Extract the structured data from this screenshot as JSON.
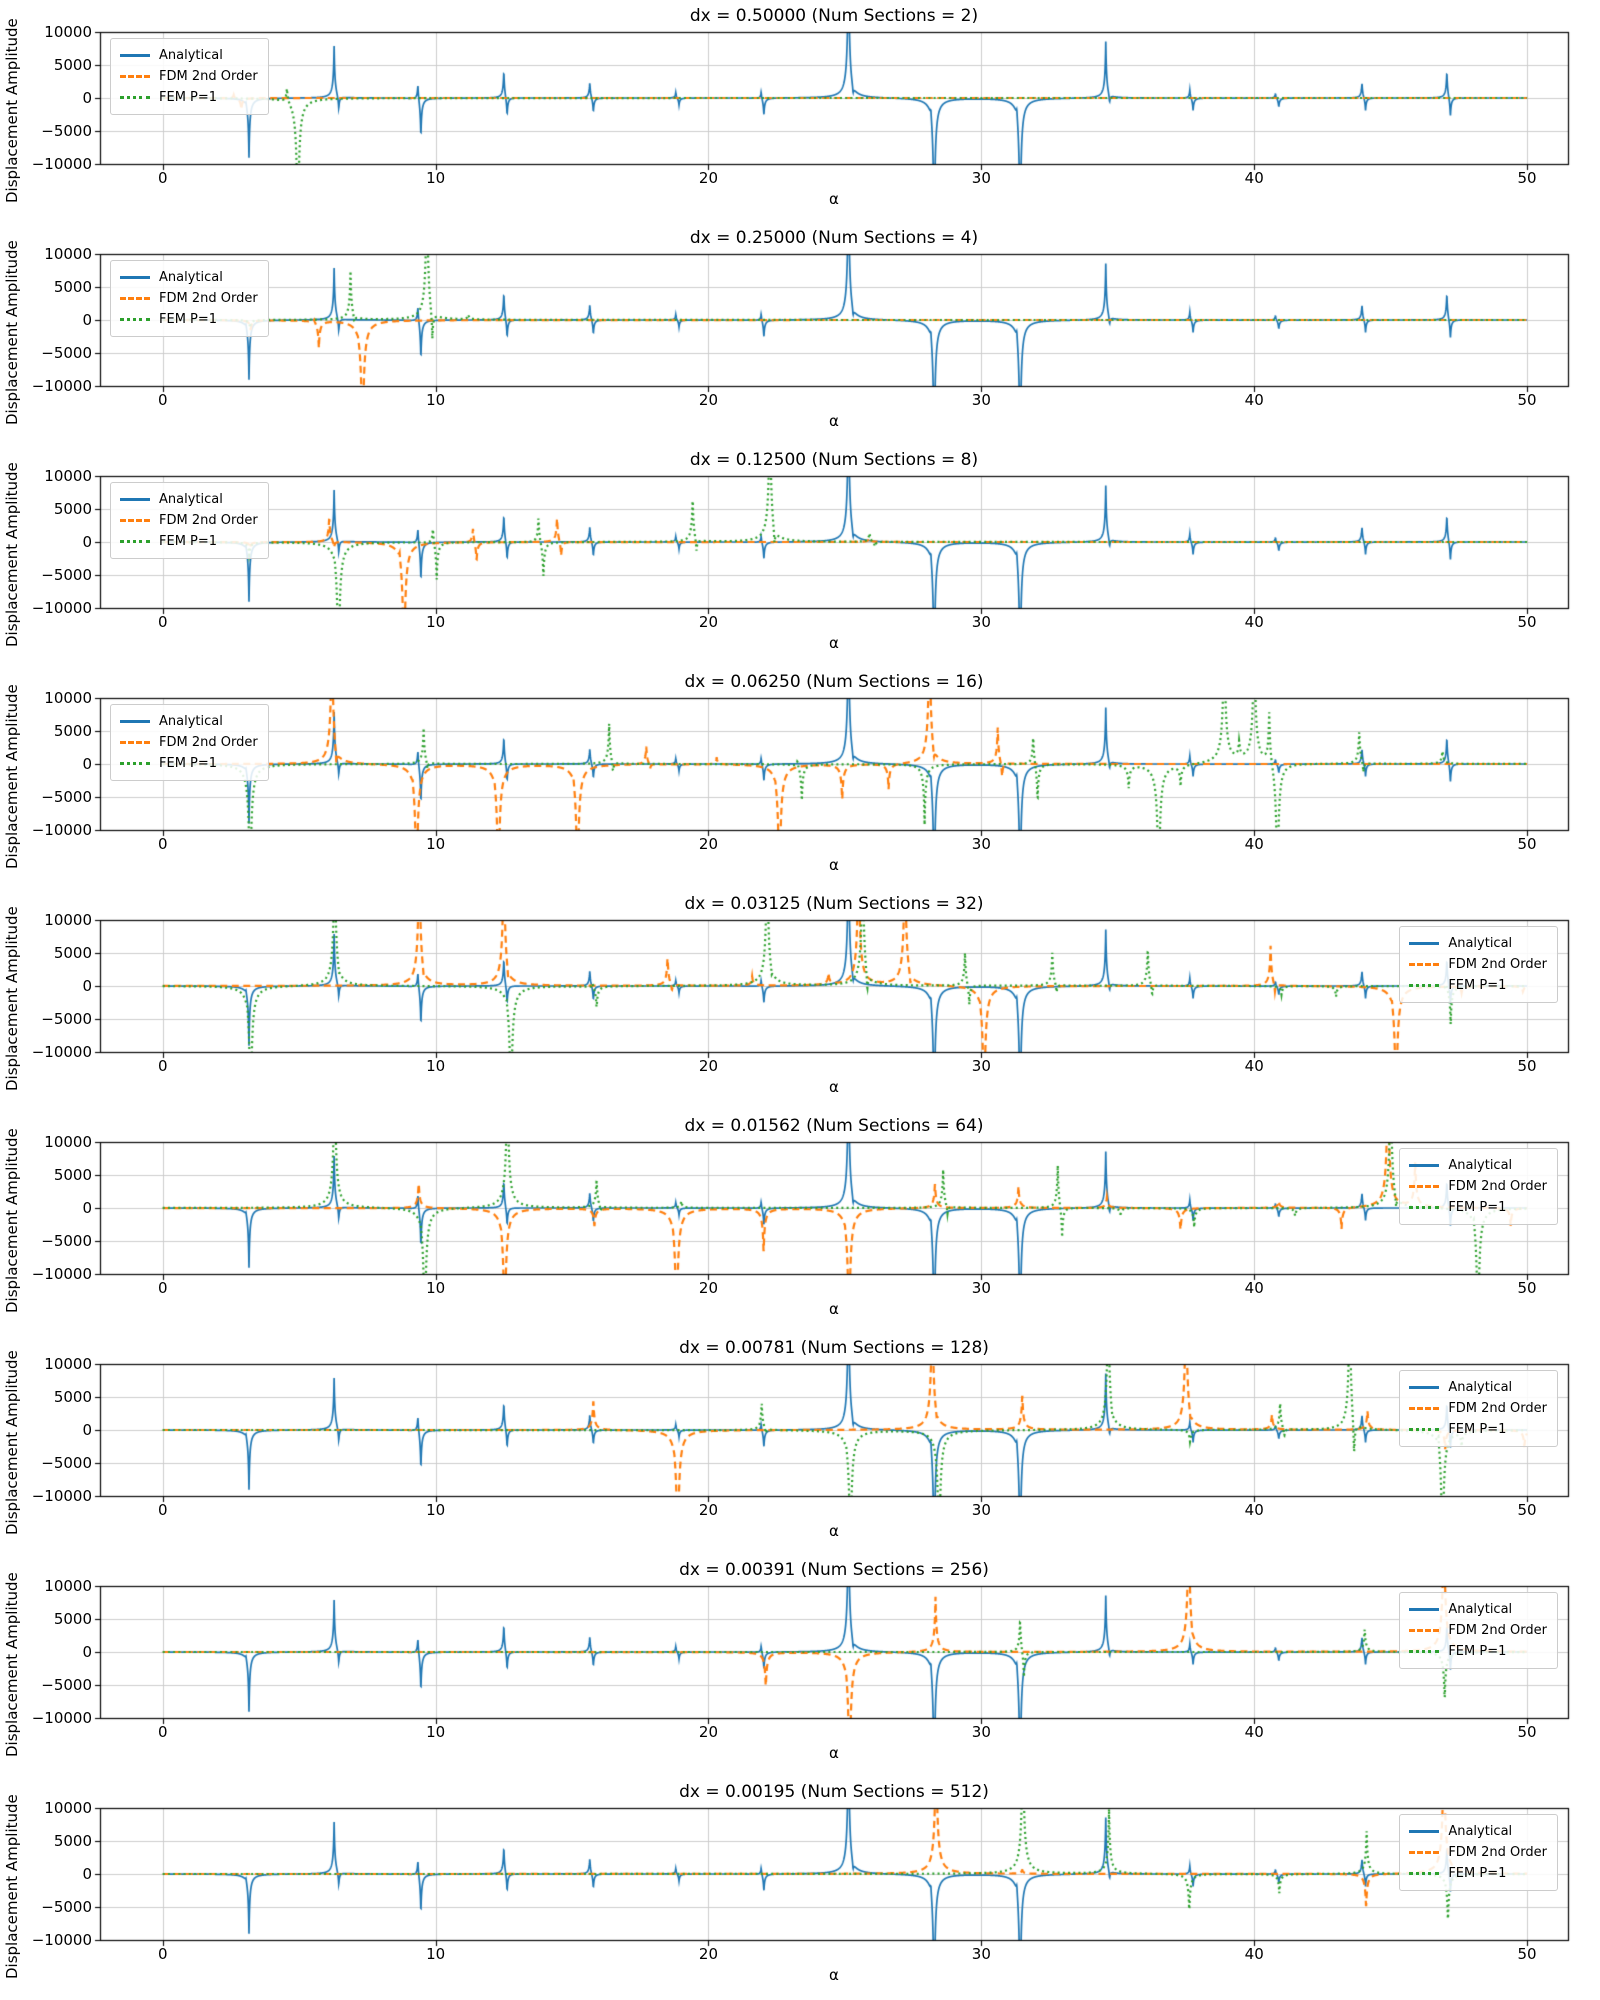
{
  "figure": {
    "ylabel": "Displacement Amplitude",
    "xlabel": "α",
    "x_ticks": [
      0,
      10,
      20,
      30,
      40,
      50
    ],
    "x_tick_labels": [
      "0",
      "10",
      "20",
      "30",
      "40",
      "50"
    ],
    "y_ticks": [
      10000,
      5000,
      0,
      -5000,
      -10000
    ],
    "y_tick_labels": [
      "10000",
      "5000",
      "0",
      "−5000",
      "−10000"
    ],
    "xlim": [
      -2.3,
      51.5
    ],
    "ylim": [
      -10000,
      10000
    ],
    "colors": {
      "analytical": "#1f77b4",
      "fdm": "#ff7f0e",
      "fem": "#2ca02c",
      "grid": "#cccccc",
      "spine": "#000000",
      "legend_border": "#cccccc",
      "text": "#000000"
    },
    "series_styles": [
      {
        "key": "analytical",
        "color": "#1f77b4",
        "dash": [],
        "lw": 1.7,
        "w": 0.05,
        "css": "solid"
      },
      {
        "key": "fdm",
        "color": "#ff7f0e",
        "dash": [
          7,
          4.5
        ],
        "lw": 2.2,
        "w": 0.06,
        "css": "dashed"
      },
      {
        "key": "fem",
        "color": "#2ca02c",
        "dash": [
          2,
          3.2
        ],
        "lw": 2.2,
        "w": 0.06,
        "css": "dotted"
      }
    ],
    "legend": {
      "entries": [
        {
          "label": "Analytical",
          "style": "solid",
          "color": "#1f77b4"
        },
        {
          "label": "FDM 2nd Order",
          "style": "dashed",
          "color": "#ff7f0e"
        },
        {
          "label": "FEM P=1",
          "style": "dotted",
          "color": "#2ca02c"
        }
      ]
    }
  },
  "chart_data": {
    "type": "line",
    "spike_format": "[alpha, peak_displacement]; |peak| > 10000 means spike is clipped off-scale",
    "shared": {
      "xlabel": "α",
      "ylabel": "Displacement Amplitude",
      "x_range": [
        0,
        50
      ],
      "ylim": [
        -10000,
        10000
      ],
      "analytical_resonances": [
        [
          3.05,
          800
        ],
        [
          3.16,
          -9200
        ],
        [
          6.28,
          8100
        ],
        [
          6.45,
          -2400
        ],
        [
          9.35,
          3000
        ],
        [
          9.46,
          -6400
        ],
        [
          12.5,
          4600
        ],
        [
          12.62,
          -3300
        ],
        [
          15.65,
          2700
        ],
        [
          15.78,
          -2500
        ],
        [
          18.8,
          1000
        ],
        [
          18.92,
          -1200
        ],
        [
          21.93,
          1400
        ],
        [
          22.03,
          -2900
        ],
        [
          25.13,
          25000
        ],
        [
          25.3,
          -1600
        ],
        [
          28.15,
          1800
        ],
        [
          28.27,
          -25000
        ],
        [
          31.3,
          1900
        ],
        [
          31.42,
          -25000
        ],
        [
          34.56,
          8800
        ],
        [
          34.7,
          -1700
        ],
        [
          37.64,
          1500
        ],
        [
          37.76,
          -2100
        ],
        [
          40.78,
          900
        ],
        [
          40.9,
          -1500
        ],
        [
          43.95,
          2600
        ],
        [
          44.08,
          -2200
        ],
        [
          47.06,
          4500
        ],
        [
          47.19,
          -3400
        ]
      ]
    },
    "subplots": [
      {
        "title": "dx = 0.50000 (Num Sections = 2)",
        "dx": "0.50000",
        "num_sections": 2,
        "legend_loc": "upper-left",
        "fdm_spikes": [
          [
            2.6,
            600
          ],
          [
            2.88,
            -1800
          ]
        ],
        "fem_spikes": [
          [
            4.55,
            2500
          ],
          [
            4.95,
            -25000
          ]
        ]
      },
      {
        "title": "dx = 0.25000 (Num Sections = 4)",
        "dx": "0.25000",
        "num_sections": 4,
        "legend_loc": "upper-left",
        "fdm_spikes": [
          [
            3.22,
            -1500
          ],
          [
            5.55,
            700
          ],
          [
            5.72,
            -4200
          ],
          [
            7.15,
            500
          ],
          [
            7.32,
            -25000
          ]
        ],
        "fem_spikes": [
          [
            3.2,
            -1200
          ],
          [
            6.88,
            7600
          ],
          [
            7.02,
            -1500
          ],
          [
            9.68,
            25000
          ],
          [
            9.88,
            -5200
          ],
          [
            11.2,
            700
          ]
        ]
      },
      {
        "title": "dx = 0.12500 (Num Sections = 8)",
        "dx": "0.12500",
        "num_sections": 8,
        "legend_loc": "upper-left",
        "fdm_spikes": [
          [
            3.2,
            -900
          ],
          [
            6.1,
            3900
          ],
          [
            6.28,
            -1200
          ],
          [
            8.68,
            1500
          ],
          [
            8.84,
            -25000
          ],
          [
            11.37,
            2700
          ],
          [
            11.5,
            -3300
          ],
          [
            14.45,
            4100
          ],
          [
            14.6,
            -2600
          ],
          [
            25.9,
            700
          ]
        ],
        "fem_spikes": [
          [
            3.17,
            -2000
          ],
          [
            6.3,
            1000
          ],
          [
            6.44,
            -25000
          ],
          [
            9.9,
            3100
          ],
          [
            10.04,
            -6100
          ],
          [
            13.77,
            4400
          ],
          [
            13.95,
            -5900
          ],
          [
            19.42,
            7200
          ],
          [
            19.56,
            -2400
          ],
          [
            22.25,
            25000
          ],
          [
            22.42,
            -3200
          ],
          [
            25.9,
            1500
          ],
          [
            26.1,
            -900
          ]
        ]
      },
      {
        "title": "dx = 0.06250 (Num Sections = 16)",
        "dx": "0.06250",
        "num_sections": 16,
        "legend_loc": "upper-left",
        "fdm_spikes": [
          [
            6.2,
            25000
          ],
          [
            6.36,
            -2900
          ],
          [
            9.16,
            1200
          ],
          [
            9.3,
            -25000
          ],
          [
            12.16,
            1000
          ],
          [
            12.3,
            -25000
          ],
          [
            15.05,
            1500
          ],
          [
            15.2,
            -25000
          ],
          [
            17.72,
            2900
          ],
          [
            17.86,
            -1100
          ],
          [
            20.3,
            1100
          ],
          [
            22.45,
            800
          ],
          [
            22.6,
            -25000
          ],
          [
            24.9,
            -5800
          ],
          [
            26.6,
            -3900
          ],
          [
            28.1,
            25000
          ],
          [
            28.26,
            -2100
          ],
          [
            30.6,
            5800
          ],
          [
            30.76,
            -2600
          ]
        ],
        "fem_spikes": [
          [
            3.2,
            -25000
          ],
          [
            9.56,
            5700
          ],
          [
            9.7,
            -1600
          ],
          [
            16.36,
            6400
          ],
          [
            16.5,
            -2100
          ],
          [
            23.26,
            1200
          ],
          [
            23.42,
            -5800
          ],
          [
            27.92,
            -9200
          ],
          [
            31.9,
            5200
          ],
          [
            32.06,
            -6300
          ],
          [
            35.4,
            -3500
          ],
          [
            36.5,
            -25000
          ],
          [
            37.3,
            -3100
          ],
          [
            38.9,
            25000
          ],
          [
            39.45,
            2600
          ],
          [
            40.0,
            25000
          ],
          [
            40.55,
            9000
          ],
          [
            40.85,
            -25000
          ],
          [
            43.85,
            5300
          ],
          [
            44.0,
            -1900
          ],
          [
            46.9,
            2100
          ]
        ]
      },
      {
        "title": "dx = 0.03125 (Num Sections = 32)",
        "dx": "0.03125",
        "num_sections": 32,
        "legend_loc": "upper-right",
        "fdm_spikes": [
          [
            9.4,
            25000
          ],
          [
            9.56,
            -1600
          ],
          [
            12.5,
            25000
          ],
          [
            12.66,
            -2100
          ],
          [
            18.5,
            4700
          ],
          [
            18.66,
            -1300
          ],
          [
            21.6,
            1400
          ],
          [
            24.4,
            1700
          ],
          [
            25.5,
            25000
          ],
          [
            27.2,
            25000
          ],
          [
            27.4,
            -2000
          ],
          [
            29.95,
            900
          ],
          [
            30.1,
            -25000
          ],
          [
            40.6,
            6300
          ],
          [
            40.76,
            -1600
          ],
          [
            45.05,
            1100
          ],
          [
            45.2,
            -25000
          ],
          [
            47.6,
            -1000
          ],
          [
            49.85,
            -900
          ]
        ],
        "fem_spikes": [
          [
            3.1,
            1100
          ],
          [
            3.22,
            -25000
          ],
          [
            6.3,
            25000
          ],
          [
            6.46,
            -1100
          ],
          [
            12.6,
            1000
          ],
          [
            12.76,
            -25000
          ],
          [
            15.76,
            900
          ],
          [
            15.9,
            -3600
          ],
          [
            22.15,
            25000
          ],
          [
            22.32,
            -1200
          ],
          [
            25.65,
            25000
          ],
          [
            25.82,
            -3500
          ],
          [
            29.4,
            5400
          ],
          [
            29.56,
            -3500
          ],
          [
            32.6,
            5200
          ],
          [
            32.76,
            -1600
          ],
          [
            36.1,
            5900
          ],
          [
            36.26,
            -2100
          ],
          [
            41.0,
            -1300
          ],
          [
            43.0,
            -1600
          ],
          [
            47.05,
            1000
          ],
          [
            47.2,
            -5900
          ]
        ]
      },
      {
        "title": "dx = 0.01562 (Num Sections = 64)",
        "dx": "0.01562",
        "num_sections": 64,
        "legend_loc": "upper-right",
        "fdm_spikes": [
          [
            9.38,
            4100
          ],
          [
            12.4,
            700
          ],
          [
            12.53,
            -25000
          ],
          [
            15.82,
            -2800
          ],
          [
            18.7,
            700
          ],
          [
            18.83,
            -25000
          ],
          [
            22.02,
            -7000
          ],
          [
            25.0,
            800
          ],
          [
            25.15,
            -25000
          ],
          [
            28.3,
            3900
          ],
          [
            31.36,
            3300
          ],
          [
            34.6,
            1600
          ],
          [
            37.3,
            -3600
          ],
          [
            40.9,
            1100
          ],
          [
            43.2,
            -3300
          ],
          [
            44.9,
            25000
          ],
          [
            45.9,
            7200
          ],
          [
            49.4,
            -2700
          ]
        ],
        "fem_spikes": [
          [
            6.3,
            25000
          ],
          [
            9.46,
            900
          ],
          [
            9.6,
            -25000
          ],
          [
            12.63,
            25000
          ],
          [
            15.9,
            4500
          ],
          [
            16.05,
            -1100
          ],
          [
            19.0,
            1000
          ],
          [
            28.6,
            6000
          ],
          [
            28.76,
            -1600
          ],
          [
            32.8,
            7100
          ],
          [
            32.96,
            -5300
          ],
          [
            35.1,
            -1000
          ],
          [
            37.8,
            -2900
          ],
          [
            41.5,
            -1300
          ],
          [
            45.0,
            25000
          ],
          [
            45.2,
            -2100
          ],
          [
            48.05,
            1600
          ],
          [
            48.2,
            -25000
          ]
        ]
      },
      {
        "title": "dx = 0.00781 (Num Sections = 128)",
        "dx": "0.00781",
        "num_sections": 128,
        "legend_loc": "upper-right",
        "fdm_spikes": [
          [
            15.78,
            4700
          ],
          [
            18.75,
            600
          ],
          [
            18.87,
            -25000
          ],
          [
            28.2,
            25000
          ],
          [
            28.36,
            -1100
          ],
          [
            31.5,
            5500
          ],
          [
            37.5,
            25000
          ],
          [
            37.66,
            -1300
          ],
          [
            40.65,
            2400
          ],
          [
            44.15,
            3000
          ],
          [
            47.0,
            -2900
          ],
          [
            49.9,
            -2600
          ]
        ],
        "fem_spikes": [
          [
            21.95,
            4400
          ],
          [
            22.1,
            -1100
          ],
          [
            25.05,
            900
          ],
          [
            25.2,
            -25000
          ],
          [
            28.45,
            -25000
          ],
          [
            34.65,
            25000
          ],
          [
            34.8,
            -1300
          ],
          [
            37.65,
            -1900
          ],
          [
            40.95,
            4400
          ],
          [
            41.1,
            -1600
          ],
          [
            43.5,
            25000
          ],
          [
            43.66,
            -6900
          ],
          [
            46.75,
            2600
          ],
          [
            46.9,
            -25000
          ],
          [
            47.6,
            -2100
          ]
        ]
      },
      {
        "title": "dx = 0.00391 (Num Sections = 256)",
        "dx": "0.00391",
        "num_sections": 256,
        "legend_loc": "upper-right",
        "fdm_spikes": [
          [
            22.1,
            -5600
          ],
          [
            25.05,
            800
          ],
          [
            25.17,
            -25000
          ],
          [
            28.32,
            8400
          ],
          [
            37.6,
            25000
          ],
          [
            37.73,
            -1100
          ],
          [
            46.95,
            25000
          ]
        ],
        "fem_spikes": [
          [
            31.42,
            5600
          ],
          [
            31.56,
            -4600
          ],
          [
            44.05,
            3600
          ],
          [
            46.98,
            -7600
          ]
        ]
      },
      {
        "title": "dx = 0.00195 (Num Sections = 512)",
        "dx": "0.00195",
        "num_sections": 512,
        "legend_loc": "upper-right",
        "fdm_spikes": [
          [
            28.34,
            25000
          ],
          [
            31.5,
            600
          ],
          [
            44.1,
            -5300
          ],
          [
            46.95,
            25000
          ]
        ],
        "fem_spikes": [
          [
            31.52,
            25000
          ],
          [
            34.68,
            9800
          ],
          [
            37.62,
            -5900
          ],
          [
            40.92,
            -2900
          ],
          [
            44.12,
            6500
          ],
          [
            47.1,
            -7500
          ]
        ]
      }
    ]
  }
}
